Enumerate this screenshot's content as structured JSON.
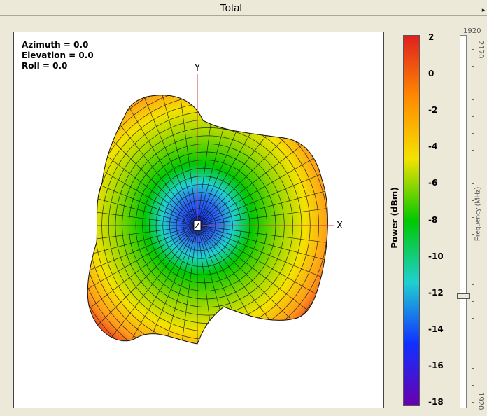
{
  "window": {
    "title": "Total"
  },
  "orientation": {
    "azimuth": "Azimuth = 0.0",
    "elevation": "Elevation = 0.0",
    "roll": "Roll = 0.0"
  },
  "axes": {
    "x": "X",
    "y": "Y",
    "z": "Z"
  },
  "colorbar": {
    "label": "Power (dBm)",
    "ticks": [
      "2",
      "0",
      "-2",
      "-4",
      "-6",
      "-8",
      "-10",
      "-12",
      "-14",
      "-16",
      "-18"
    ],
    "range": [
      -18,
      2
    ],
    "colors": [
      "#e0201f",
      "#ff8a00",
      "#f4e200",
      "#00c800",
      "#20d0d0",
      "#1030ff",
      "#6a00b0"
    ]
  },
  "frequency_slider": {
    "top_value": "1920",
    "label": "Frequency (MHz)",
    "min_value": "1920",
    "max_value": "2170",
    "bottom_value": "2170"
  }
}
